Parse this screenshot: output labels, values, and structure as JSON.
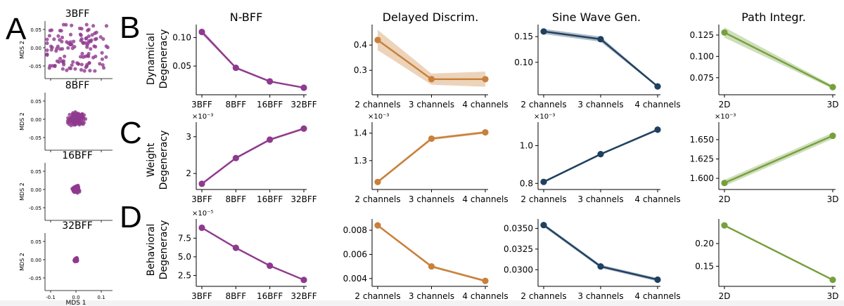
{
  "panel_letters": [
    "A",
    "B",
    "C",
    "D"
  ],
  "column_titles": [
    "N-BFF",
    "Delayed Discrim.",
    "Sine Wave Gen.",
    "Path Integr."
  ],
  "row_labels": [
    [
      "Dynamical",
      "Degeneracy"
    ],
    [
      "Weight",
      "Degeneracy"
    ],
    [
      "Behavioral",
      "Degeneracy"
    ]
  ],
  "mds": {
    "xlabel": "MDS 1",
    "ylabel": "MDS 2",
    "panels": [
      {
        "title": "3BFF",
        "yticks": [
          "0.05",
          "0.00",
          "-0.05"
        ]
      },
      {
        "title": "8BFF",
        "yticks": [
          "0.05",
          "0.00",
          "-0.05"
        ]
      },
      {
        "title": "16BFF",
        "yticks": [
          "0.05",
          "0.00",
          "-0.05"
        ]
      },
      {
        "title": "32BFF",
        "yticks": [
          "0.05",
          "0.00",
          "-0.05"
        ]
      }
    ],
    "xticks": [
      "-0.1",
      "0.0",
      "0.1"
    ]
  },
  "colors": {
    "nbff": "#8e3a8e",
    "delayed": "#c8803a",
    "sine": "#1f4060",
    "path": "#76a03c"
  },
  "chart_data": [
    {
      "type": "line",
      "row": "Dynamical Degeneracy",
      "column": "N-BFF",
      "color": "#8e3a8e",
      "categories": [
        "3BFF",
        "8BFF",
        "16BFF",
        "32BFF"
      ],
      "values": [
        0.11,
        0.047,
        0.023,
        0.012
      ],
      "band": [
        0.004,
        0.002,
        0.0015,
        0.001
      ],
      "ylim": [
        0.007,
        0.118
      ],
      "yticks": [
        0.05,
        0.1
      ],
      "ytick_labels": [
        "0.05",
        "0.10"
      ],
      "multiplier": ""
    },
    {
      "type": "line",
      "row": "Dynamical Degeneracy",
      "column": "Delayed Discrim.",
      "color": "#c8803a",
      "categories": [
        "2 channels",
        "3 channels",
        "4 channels"
      ],
      "values": [
        0.42,
        0.265,
        0.265
      ],
      "band": [
        0.04,
        0.022,
        0.03
      ],
      "ylim": [
        0.22,
        0.47
      ],
      "yticks": [
        0.3,
        0.4
      ],
      "ytick_labels": [
        "0.3",
        "0.4"
      ],
      "multiplier": ""
    },
    {
      "type": "line",
      "row": "Dynamical Degeneracy",
      "column": "Sine Wave Gen.",
      "color": "#1f4060",
      "categories": [
        "2 channels",
        "3 channels",
        "4 channels"
      ],
      "values": [
        0.16,
        0.145,
        0.053
      ],
      "band": [
        0.005,
        0.005,
        0.002
      ],
      "ylim": [
        0.045,
        0.168
      ],
      "yticks": [
        0.1,
        0.15
      ],
      "ytick_labels": [
        "0.10",
        "0.15"
      ],
      "multiplier": ""
    },
    {
      "type": "line",
      "row": "Dynamical Degeneracy",
      "column": "Path Integr.",
      "color": "#76a03c",
      "categories": [
        "2D",
        "3D"
      ],
      "values": [
        0.128,
        0.064
      ],
      "band": [
        0.006,
        0.002
      ],
      "ylim": [
        0.06,
        0.134
      ],
      "yticks": [
        0.075,
        0.1,
        0.125
      ],
      "ytick_labels": [
        "0.075",
        "0.100",
        "0.125"
      ],
      "multiplier": ""
    },
    {
      "type": "line",
      "row": "Weight Degeneracy",
      "column": "N-BFF",
      "color": "#8e3a8e",
      "categories": [
        "3BFF",
        "8BFF",
        "16BFF",
        "32BFF"
      ],
      "values": [
        1.72,
        2.42,
        2.92,
        3.22
      ],
      "band": [
        0.03,
        0.03,
        0.03,
        0.03
      ],
      "ylim": [
        1.68,
        3.32
      ],
      "yticks": [
        2,
        3
      ],
      "ytick_labels": [
        "2",
        "3"
      ],
      "multiplier": "×10⁻³"
    },
    {
      "type": "line",
      "row": "Weight Degeneracy",
      "column": "Delayed Discrim.",
      "color": "#c8803a",
      "categories": [
        "2 channels",
        "3 channels",
        "4 channels"
      ],
      "values": [
        1.222,
        1.38,
        1.403
      ],
      "band": [
        0.005,
        0.005,
        0.005
      ],
      "ylim": [
        1.21,
        1.43
      ],
      "yticks": [
        1.3,
        1.4
      ],
      "ytick_labels": [
        "1.3",
        "1.4"
      ],
      "multiplier": "×10⁻³"
    },
    {
      "type": "line",
      "row": "Weight Degeneracy",
      "column": "Sine Wave Gen.",
      "color": "#1f4060",
      "categories": [
        "2 channels",
        "3 channels",
        "4 channels"
      ],
      "values": [
        0.808,
        0.955,
        1.085
      ],
      "band": [
        0.006,
        0.006,
        0.006
      ],
      "ylim": [
        0.79,
        1.11
      ],
      "yticks": [
        0.8,
        1.0
      ],
      "ytick_labels": [
        "0.8",
        "1.0"
      ],
      "multiplier": "×10⁻³"
    },
    {
      "type": "line",
      "row": "Weight Degeneracy",
      "column": "Path Integr.",
      "color": "#76a03c",
      "categories": [
        "2D",
        "3D"
      ],
      "values": [
        1.594,
        1.655
      ],
      "band": [
        0.004,
        0.004
      ],
      "ylim": [
        1.591,
        1.669
      ],
      "yticks": [
        1.6,
        1.625,
        1.65
      ],
      "ytick_labels": [
        "1.600",
        "1.625",
        "1.650"
      ],
      "multiplier": "×10⁻³"
    },
    {
      "type": "line",
      "row": "Behavioral Degeneracy",
      "column": "N-BFF",
      "color": "#8e3a8e",
      "categories": [
        "3BFF",
        "8BFF",
        "16BFF",
        "32BFF"
      ],
      "values": [
        8.9,
        6.2,
        3.8,
        1.9
      ],
      "band": [
        0.1,
        0.1,
        0.1,
        0.1
      ],
      "ylim": [
        1.6,
        9.7
      ],
      "yticks": [
        2.5,
        5.0,
        7.5
      ],
      "ytick_labels": [
        "2.5",
        "5.0",
        "7.5"
      ],
      "multiplier": "×10⁻⁵"
    },
    {
      "type": "line",
      "row": "Behavioral Degeneracy",
      "column": "Delayed Discrim.",
      "color": "#c8803a",
      "categories": [
        "2 channels",
        "3 channels",
        "4 channels"
      ],
      "values": [
        0.0084,
        0.005,
        0.0038
      ],
      "band": [
        0.0001,
        0.0001,
        0.0001
      ],
      "ylim": [
        0.0037,
        0.0087
      ],
      "yticks": [
        0.004,
        0.006,
        0.008
      ],
      "ytick_labels": [
        "0.004",
        "0.006",
        "0.008"
      ],
      "multiplier": ""
    },
    {
      "type": "line",
      "row": "Behavioral Degeneracy",
      "column": "Sine Wave Gen.",
      "color": "#1f4060",
      "categories": [
        "2 channels",
        "3 channels",
        "4 channels"
      ],
      "values": [
        0.0354,
        0.0304,
        0.0288
      ],
      "band": [
        0.0002,
        0.0002,
        0.0002
      ],
      "ylim": [
        0.0285,
        0.0358
      ],
      "yticks": [
        0.03,
        0.0325,
        0.035
      ],
      "ytick_labels": [
        "0.0300",
        "0.0325",
        "0.0350"
      ],
      "multiplier": ""
    },
    {
      "type": "line",
      "row": "Behavioral Degeneracy",
      "column": "Path Integr.",
      "color": "#76a03c",
      "categories": [
        "2D",
        "3D"
      ],
      "values": [
        0.24,
        0.12
      ],
      "band": [
        0.002,
        0.002
      ],
      "ylim": [
        0.115,
        0.248
      ],
      "yticks": [
        0.15,
        0.2
      ],
      "ytick_labels": [
        "0.15",
        "0.20"
      ],
      "multiplier": ""
    }
  ]
}
